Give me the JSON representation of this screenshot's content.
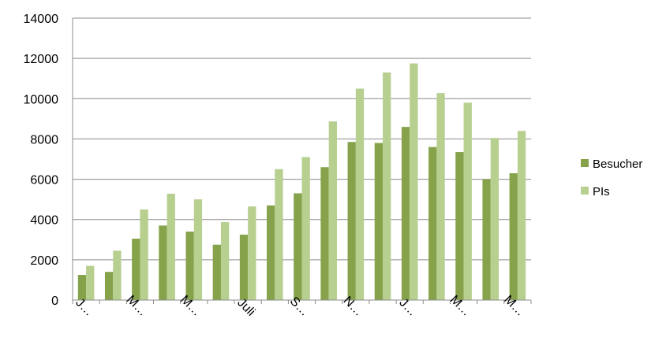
{
  "chart_data": {
    "type": "bar",
    "title": "",
    "xlabel": "",
    "ylabel": "",
    "ylim": [
      0,
      14000
    ],
    "y_ticks": [
      "0",
      "2000",
      "4000",
      "6000",
      "8000",
      "10000",
      "12000",
      "14000"
    ],
    "grid": true,
    "legend_position": "right",
    "categories": [
      "J…",
      "",
      "M…",
      "",
      "M…",
      "",
      "Juli",
      "",
      "S…",
      "",
      "N…",
      "",
      "J…",
      "",
      "M…",
      "",
      "M…"
    ],
    "series": [
      {
        "name": "Besucher",
        "color": "#86a34b",
        "values": [
          1250,
          1400,
          3050,
          3700,
          3400,
          2750,
          3250,
          4700,
          5300,
          6600,
          7850,
          7800,
          8600,
          7600,
          7350,
          6000,
          6300
        ]
      },
      {
        "name": "PIs",
        "color": "#b7cf8f",
        "values": [
          1700,
          2450,
          4500,
          5280,
          5000,
          3870,
          4650,
          6500,
          7100,
          8870,
          10500,
          11300,
          11750,
          10280,
          9800,
          8050,
          8400
        ]
      }
    ]
  }
}
